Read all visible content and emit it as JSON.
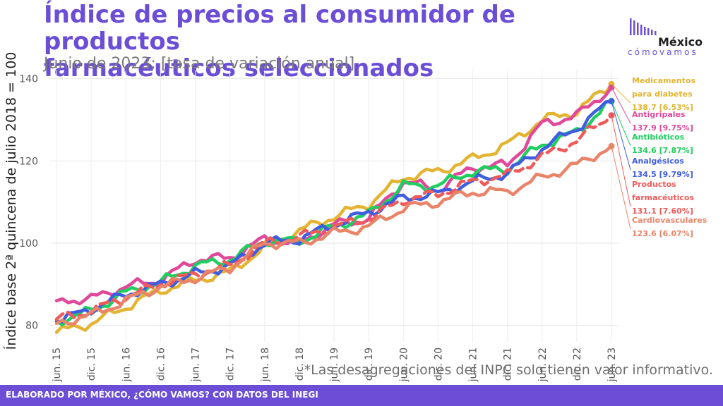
{
  "header": {
    "title_line1": "Índice de precios al consumidor de productos",
    "title_line2": "farmacéuticos seleccionados",
    "subtitle": "Junio de 2023; [tasa de variación anual]"
  },
  "logo": {
    "main": "México",
    "sub": "cómovamos"
  },
  "note": "*Las desagregaciones del INPC solo tienen valor informativo.",
  "footer": "ELABORADO POR MÉXICO, ¿CÓMO VAMOS? CON DATOS DEL INEGI",
  "colors": {
    "accent": "#6c4ed6",
    "footer_bg": "#6c4ed6"
  },
  "chart_data": {
    "type": "line",
    "ylabel": "Índice base 2ª quincena de julio 2018 = 100",
    "ylim": [
      76,
      142
    ],
    "yticks": [
      80,
      100,
      120,
      140
    ],
    "x_range": [
      "jun. 15",
      "jun. 23"
    ],
    "x_ticks": [
      "jun. 15",
      "dic. 15",
      "jun. 16",
      "dic. 16",
      "jun. 17",
      "dic. 17",
      "jun. 18",
      "dic. 18",
      "jun. 19",
      "dic. 19",
      "jun. 20",
      "dic. 20",
      "jun. 21",
      "dic. 21",
      "jun. 22",
      "dic. 22",
      "jun. 23"
    ],
    "grid": true,
    "legend": "direct labels at right",
    "series": [
      {
        "name": "Medicamentos para diabetes",
        "label_lines": [
          "Medicamentos",
          "para diabetes",
          "138.7 [6.53%]"
        ],
        "color": "#e3b432",
        "dashed": false,
        "points": [
          [
            0,
            78.3
          ],
          [
            6,
            80.5
          ],
          [
            12,
            84.5
          ],
          [
            18,
            88.5
          ],
          [
            24,
            91
          ],
          [
            30,
            93
          ],
          [
            36,
            99
          ],
          [
            42,
            103
          ],
          [
            48,
            106.5
          ],
          [
            54,
            109.5
          ],
          [
            60,
            116
          ],
          [
            66,
            117.5
          ],
          [
            72,
            120.5
          ],
          [
            78,
            124
          ],
          [
            84,
            130
          ],
          [
            90,
            132
          ],
          [
            96,
            138.7
          ]
        ]
      },
      {
        "name": "Antigripales",
        "label_lines": [
          "Antigripales",
          "137.9 [9.75%]"
        ],
        "color": "#e0489a",
        "dashed": false,
        "points": [
          [
            0,
            86
          ],
          [
            6,
            86.5
          ],
          [
            12,
            89.5
          ],
          [
            18,
            91
          ],
          [
            24,
            96
          ],
          [
            30,
            96.5
          ],
          [
            36,
            101
          ],
          [
            42,
            100
          ],
          [
            48,
            104.5
          ],
          [
            54,
            106
          ],
          [
            60,
            115
          ],
          [
            66,
            113
          ],
          [
            72,
            118.5
          ],
          [
            78,
            119
          ],
          [
            84,
            129
          ],
          [
            90,
            131
          ],
          [
            96,
            137.9
          ]
        ]
      },
      {
        "name": "Antibióticos",
        "label_lines": [
          "Antibióticos",
          "134.6 [7.87%]"
        ],
        "color": "#1fce5f",
        "dashed": false,
        "points": [
          [
            0,
            81
          ],
          [
            6,
            83.5
          ],
          [
            12,
            88
          ],
          [
            18,
            90.5
          ],
          [
            24,
            94.5
          ],
          [
            30,
            96
          ],
          [
            36,
            100.5
          ],
          [
            42,
            100.5
          ],
          [
            48,
            104
          ],
          [
            54,
            107
          ],
          [
            60,
            114
          ],
          [
            66,
            114
          ],
          [
            72,
            117.5
          ],
          [
            78,
            118
          ],
          [
            84,
            124
          ],
          [
            90,
            127
          ],
          [
            96,
            134.6
          ]
        ]
      },
      {
        "name": "Analgésicos",
        "label_lines": [
          "Analgésicos",
          "134.5 [9.79%]"
        ],
        "color": "#3f5de0",
        "dashed": false,
        "points": [
          [
            0,
            81
          ],
          [
            6,
            84
          ],
          [
            12,
            87.5
          ],
          [
            18,
            90
          ],
          [
            24,
            92.5
          ],
          [
            30,
            94.5
          ],
          [
            36,
            100
          ],
          [
            42,
            101
          ],
          [
            48,
            104.5
          ],
          [
            54,
            107.5
          ],
          [
            60,
            111
          ],
          [
            66,
            112
          ],
          [
            72,
            115
          ],
          [
            78,
            117
          ],
          [
            84,
            123
          ],
          [
            90,
            128
          ],
          [
            96,
            134.5
          ]
        ]
      },
      {
        "name": "Productos farmacéuticos",
        "label_lines": [
          "Productos",
          "farmacéuticos",
          "131.1 [7.60%]"
        ],
        "color": "#f05a5a",
        "dashed": true,
        "points": [
          [
            0,
            81.5
          ],
          [
            6,
            83.5
          ],
          [
            12,
            87
          ],
          [
            18,
            90
          ],
          [
            24,
            92.5
          ],
          [
            30,
            94.5
          ],
          [
            36,
            100
          ],
          [
            42,
            101.5
          ],
          [
            48,
            104
          ],
          [
            54,
            106
          ],
          [
            60,
            110.5
          ],
          [
            66,
            112
          ],
          [
            72,
            115
          ],
          [
            78,
            116.5
          ],
          [
            84,
            121
          ],
          [
            90,
            125
          ],
          [
            96,
            131.1
          ]
        ]
      },
      {
        "name": "Cardiovasculares",
        "label_lines": [
          "Cardiovasculares",
          "123.6 [6.07%]"
        ],
        "color": "#e98468",
        "dashed": false,
        "points": [
          [
            0,
            80.5
          ],
          [
            6,
            82.5
          ],
          [
            12,
            86
          ],
          [
            18,
            89.5
          ],
          [
            24,
            91.5
          ],
          [
            30,
            94
          ],
          [
            36,
            100
          ],
          [
            42,
            100
          ],
          [
            48,
            102.5
          ],
          [
            54,
            104
          ],
          [
            60,
            108.5
          ],
          [
            66,
            110
          ],
          [
            72,
            112.5
          ],
          [
            78,
            112.5
          ],
          [
            84,
            116
          ],
          [
            90,
            119
          ],
          [
            96,
            123.6
          ]
        ]
      }
    ]
  }
}
